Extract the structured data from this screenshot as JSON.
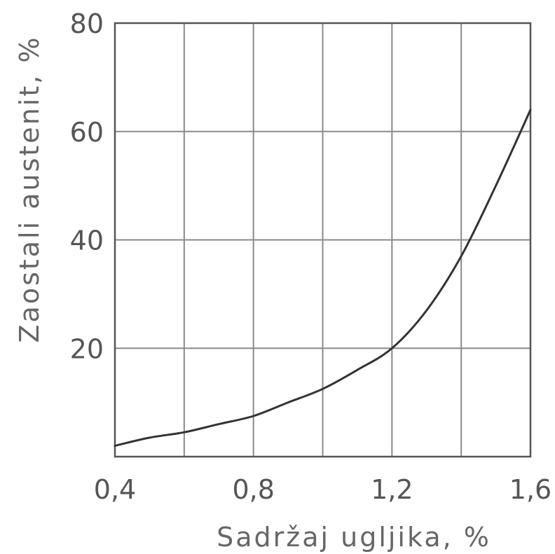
{
  "chart_data": {
    "type": "line",
    "xlabel": "Sadržaj ugljika, %",
    "ylabel": "Zaostali austenit, %",
    "xlim": [
      0.4,
      1.6
    ],
    "ylim": [
      0,
      80
    ],
    "x_ticks": [
      "0,4",
      "0,8",
      "1,2",
      "1,6"
    ],
    "y_ticks": [
      "20",
      "40",
      "60",
      "80"
    ],
    "grid": true,
    "series": [
      {
        "x": [
          0.4,
          0.5,
          0.6,
          0.7,
          0.8,
          0.9,
          1.0,
          1.1,
          1.2,
          1.3,
          1.4,
          1.5,
          1.6
        ],
        "values": [
          2,
          3.5,
          4.5,
          6,
          7.5,
          10,
          12.5,
          16,
          20,
          27,
          37,
          50,
          64
        ]
      }
    ],
    "colors": {
      "curve": "#333333",
      "grid": "#8a8a8a"
    }
  }
}
